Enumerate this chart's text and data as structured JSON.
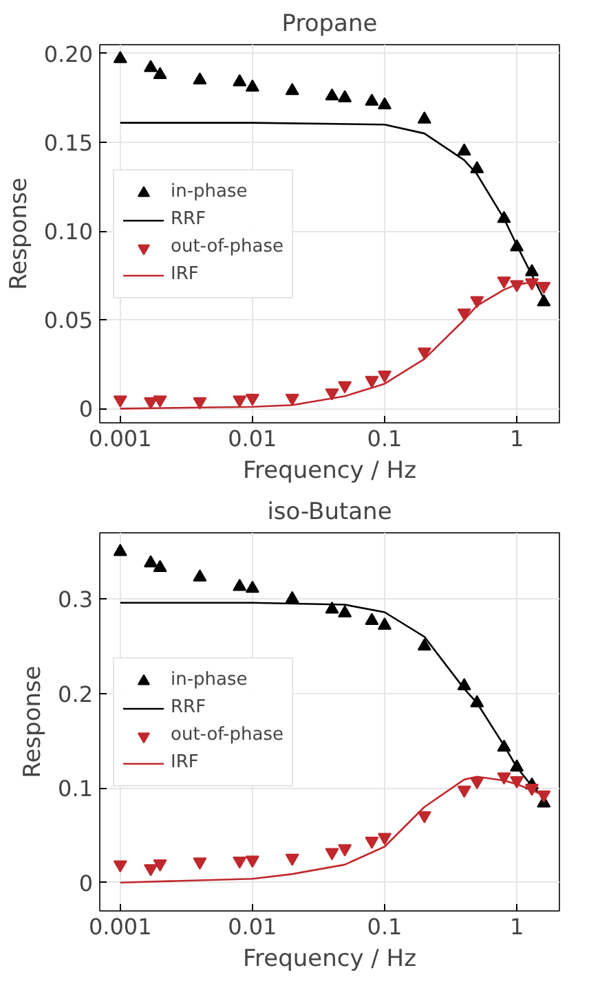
{
  "chart_data": [
    {
      "type": "scatter",
      "title": "Propane",
      "xlabel": "Frequency / Hz",
      "ylabel": "Response",
      "log": "x",
      "grid": true,
      "legend": "center left",
      "xlim": [
        0.0007,
        2.1
      ],
      "xticks": [
        0.001,
        0.01,
        0.1,
        1
      ],
      "ylim": [
        -0.008,
        0.205
      ],
      "yticks": [
        {
          "value": 0,
          "label": "0"
        },
        {
          "value": 0.05,
          "label": "0.05"
        },
        {
          "value": 0.1,
          "label": "0.10"
        },
        {
          "value": 0.15,
          "label": "0.15"
        },
        {
          "value": 0.2,
          "label": "0.20"
        }
      ],
      "series": [
        {
          "name": "in-phase",
          "marker": "triangle",
          "color": "#000000",
          "x": [
            0.001,
            0.0017,
            0.002,
            0.004,
            0.008,
            0.01,
            0.02,
            0.04,
            0.05,
            0.08,
            0.1,
            0.2,
            0.4,
            0.5,
            0.8,
            1.0,
            1.3,
            1.6
          ],
          "values": [
            0.197,
            0.192,
            0.188,
            0.185,
            0.184,
            0.181,
            0.179,
            0.176,
            0.175,
            0.173,
            0.171,
            0.163,
            0.145,
            0.135,
            0.107,
            0.091,
            0.077,
            0.06
          ]
        },
        {
          "name": "RRF",
          "type": "line",
          "color": "#000000",
          "x": [
            0.001,
            0.01,
            0.1,
            0.2,
            0.4,
            0.5,
            0.8,
            1.0,
            1.6
          ],
          "values": [
            0.161,
            0.161,
            0.16,
            0.155,
            0.14,
            0.132,
            0.107,
            0.092,
            0.062
          ]
        },
        {
          "name": "out-of-phase",
          "marker": "triangle_down",
          "color": "#c0282d",
          "x": [
            0.001,
            0.0017,
            0.002,
            0.004,
            0.008,
            0.01,
            0.02,
            0.04,
            0.05,
            0.08,
            0.1,
            0.2,
            0.4,
            0.5,
            0.8,
            1.0,
            1.3,
            1.6
          ],
          "values": [
            0.005,
            0.004,
            0.005,
            0.004,
            0.005,
            0.006,
            0.006,
            0.009,
            0.013,
            0.016,
            0.019,
            0.032,
            0.054,
            0.061,
            0.072,
            0.07,
            0.071,
            0.069
          ]
        },
        {
          "name": "IRF",
          "type": "line",
          "color": "#c0282d",
          "x": [
            0.001,
            0.01,
            0.02,
            0.05,
            0.1,
            0.2,
            0.4,
            0.5,
            0.8,
            1.0,
            1.3,
            1.6
          ],
          "values": [
            0,
            0.001,
            0.002,
            0.007,
            0.014,
            0.028,
            0.05,
            0.058,
            0.067,
            0.07,
            0.071,
            0.07
          ]
        }
      ]
    },
    {
      "type": "scatter",
      "title": "iso-Butane",
      "xlabel": "Frequency / Hz",
      "ylabel": "Response",
      "log": "x",
      "grid": true,
      "legend": "center left",
      "xlim": [
        0.0007,
        2.1
      ],
      "xticks": [
        0.001,
        0.01,
        0.1,
        1
      ],
      "ylim": [
        -0.03,
        0.37
      ],
      "yticks": [
        {
          "value": 0,
          "label": "0"
        },
        {
          "value": 0.1,
          "label": "0.1"
        },
        {
          "value": 0.2,
          "label": "0.2"
        },
        {
          "value": 0.3,
          "label": "0.3"
        }
      ],
      "series": [
        {
          "name": "in-phase",
          "marker": "triangle",
          "color": "#000000",
          "x": [
            0.001,
            0.0017,
            0.002,
            0.004,
            0.008,
            0.01,
            0.02,
            0.04,
            0.05,
            0.08,
            0.1,
            0.2,
            0.4,
            0.5,
            0.8,
            1.0,
            1.3,
            1.6
          ],
          "values": [
            0.35,
            0.338,
            0.333,
            0.323,
            0.313,
            0.311,
            0.3,
            0.289,
            0.285,
            0.277,
            0.272,
            0.25,
            0.208,
            0.19,
            0.143,
            0.122,
            0.103,
            0.084
          ]
        },
        {
          "name": "RRF",
          "type": "line",
          "color": "#000000",
          "x": [
            0.001,
            0.01,
            0.05,
            0.1,
            0.2,
            0.4,
            0.5,
            0.8,
            1.0,
            1.3,
            1.6
          ],
          "values": [
            0.296,
            0.296,
            0.294,
            0.286,
            0.26,
            0.205,
            0.19,
            0.145,
            0.122,
            0.102,
            0.09
          ]
        },
        {
          "name": "out-of-phase",
          "marker": "triangle_down",
          "color": "#c0282d",
          "x": [
            0.001,
            0.0017,
            0.002,
            0.004,
            0.008,
            0.01,
            0.02,
            0.04,
            0.05,
            0.08,
            0.1,
            0.2,
            0.4,
            0.5,
            0.8,
            1.0,
            1.3,
            1.6
          ],
          "values": [
            0.019,
            0.015,
            0.02,
            0.022,
            0.023,
            0.024,
            0.026,
            0.032,
            0.036,
            0.044,
            0.048,
            0.071,
            0.098,
            0.107,
            0.112,
            0.108,
            0.1,
            0.093
          ]
        },
        {
          "name": "IRF",
          "type": "line",
          "color": "#c0282d",
          "x": [
            0.001,
            0.01,
            0.02,
            0.05,
            0.1,
            0.2,
            0.4,
            0.5,
            0.8,
            1.0,
            1.3,
            1.6
          ],
          "values": [
            0,
            0.004,
            0.009,
            0.019,
            0.038,
            0.08,
            0.109,
            0.112,
            0.108,
            0.104,
            0.098,
            0.092
          ]
        }
      ]
    }
  ]
}
